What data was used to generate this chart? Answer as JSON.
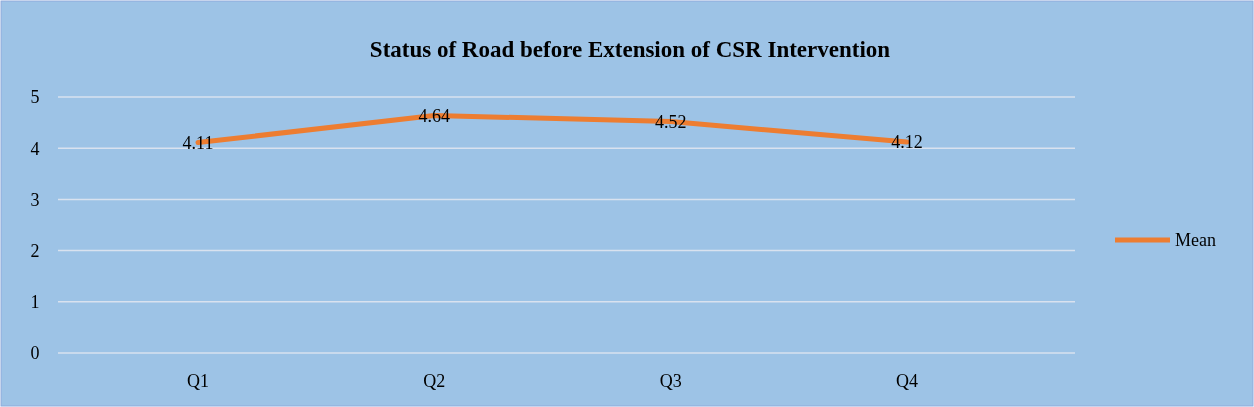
{
  "chart_data": {
    "type": "line",
    "title": "Status of Road before Extension of CSR Intervention",
    "categories": [
      "Q1",
      "Q2",
      "Q3",
      "Q4"
    ],
    "series": [
      {
        "name": "Mean",
        "color": "#ed7d31",
        "values": [
          4.11,
          4.64,
          4.52,
          4.12
        ]
      }
    ],
    "ylim": [
      0,
      5
    ],
    "yticks": [
      0,
      1,
      2,
      3,
      4,
      5
    ],
    "grid": "y",
    "legend": "right",
    "data_labels": true,
    "marker": "none",
    "line_style": "solid"
  }
}
